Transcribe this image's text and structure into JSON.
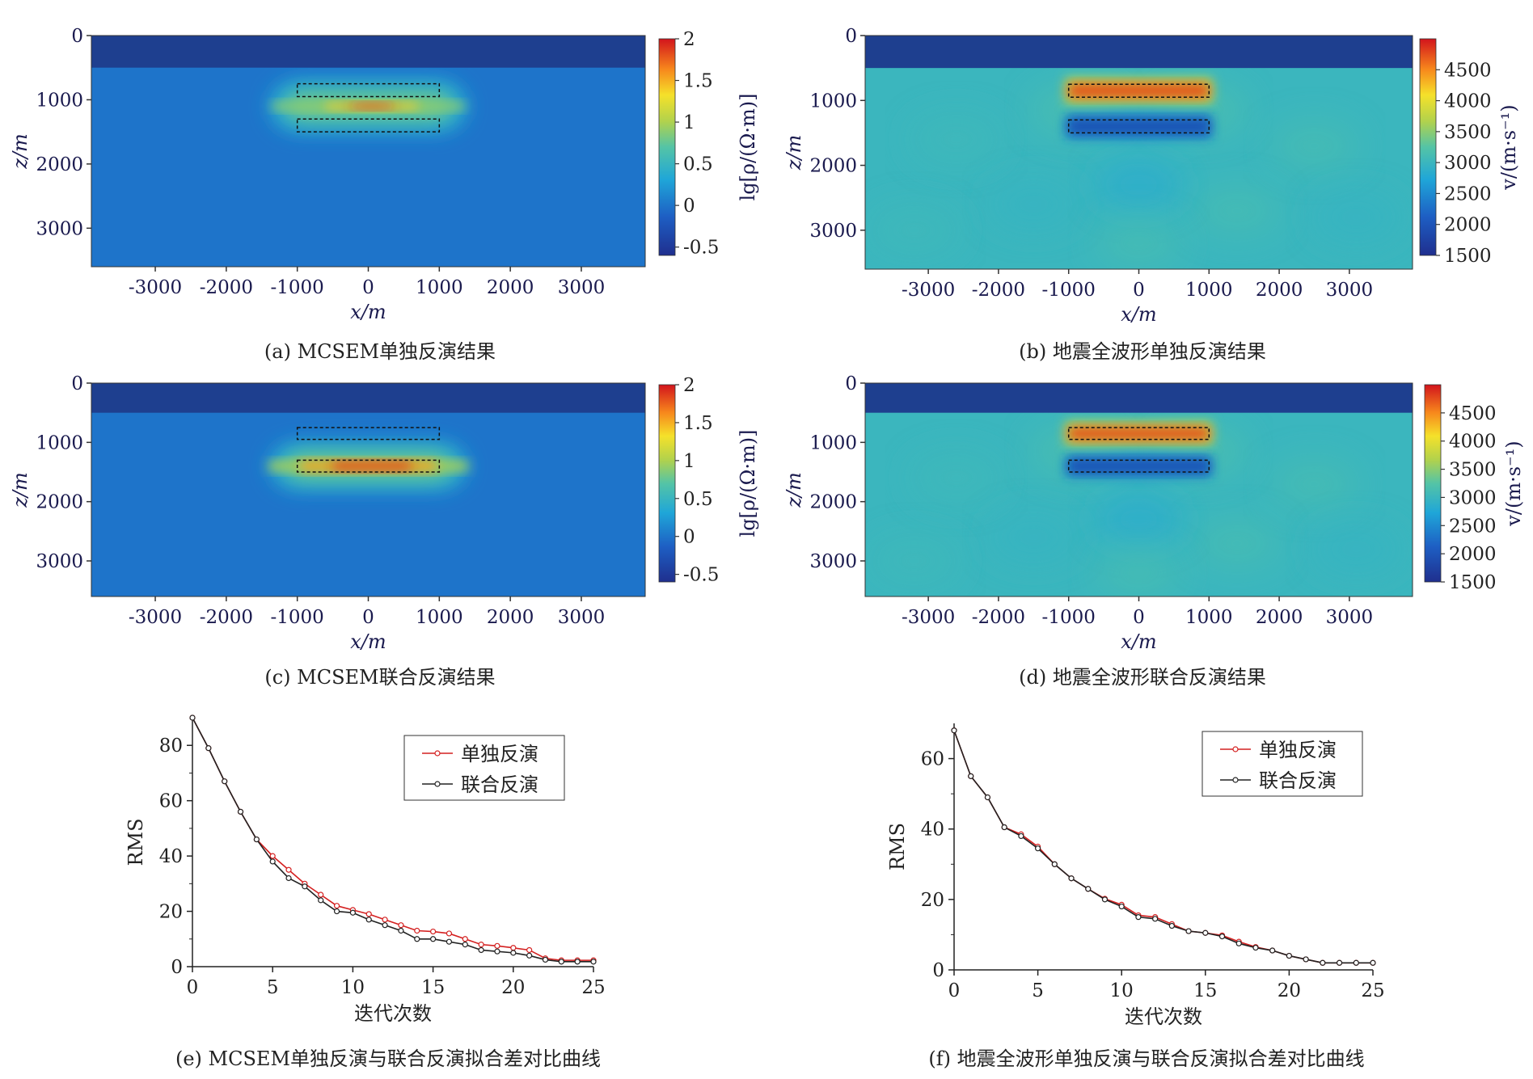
{
  "chart_data": [
    {
      "id": "a",
      "type": "heatmap",
      "caption": "(a) MCSEM单独反演结果",
      "xlabel": "x/m",
      "ylabel": "z/m",
      "x_ticks": [
        -3000,
        -2000,
        -1000,
        0,
        1000,
        2000,
        3000
      ],
      "y_ticks": [
        0,
        1000,
        2000,
        3000
      ],
      "xlim": [
        -3900,
        3900
      ],
      "zlim": [
        0,
        3600
      ],
      "water_depth": 500,
      "background_value": 0.0,
      "colorbar": {
        "label": "lg[ρ/(Ω·m)]",
        "ticks": [
          2,
          1.5,
          1,
          0.5,
          0,
          -0.5
        ],
        "range": [
          -0.6,
          2.0
        ]
      },
      "targets": [
        {
          "x": [
            -1000,
            1000
          ],
          "z": [
            750,
            950
          ]
        },
        {
          "x": [
            -1000,
            1000
          ],
          "z": [
            1300,
            1500
          ]
        }
      ],
      "anomaly": {
        "type": "resistive_smeared",
        "center_z": 1100,
        "peak": 1.9
      }
    },
    {
      "id": "b",
      "type": "heatmap",
      "caption": "(b) 地震全波形单独反演结果",
      "xlabel": "x/m",
      "ylabel": "z/m",
      "x_ticks": [
        -3000,
        -2000,
        -1000,
        0,
        1000,
        2000,
        3000
      ],
      "y_ticks": [
        0,
        1000,
        2000,
        3000
      ],
      "xlim": [
        -3900,
        3900
      ],
      "zlim": [
        0,
        3600
      ],
      "water_depth": 500,
      "background_value": 3000,
      "colorbar": {
        "label": "v/(m·s⁻¹)",
        "ticks": [
          4500,
          4000,
          3500,
          3000,
          2500,
          2000,
          1500
        ],
        "range": [
          1500,
          5000
        ]
      },
      "targets": [
        {
          "x": [
            -1000,
            1000
          ],
          "z": [
            750,
            950
          ],
          "value": 4800
        },
        {
          "x": [
            -1000,
            1000
          ],
          "z": [
            1300,
            1500
          ],
          "value": 1900
        }
      ]
    },
    {
      "id": "c",
      "type": "heatmap",
      "caption": "(c) MCSEM联合反演结果",
      "xlabel": "x/m",
      "ylabel": "z/m",
      "x_ticks": [
        -3000,
        -2000,
        -1000,
        0,
        1000,
        2000,
        3000
      ],
      "y_ticks": [
        0,
        1000,
        2000,
        3000
      ],
      "xlim": [
        -3900,
        3900
      ],
      "zlim": [
        0,
        3600
      ],
      "water_depth": 500,
      "background_value": 0.0,
      "colorbar": {
        "label": "lg[ρ/(Ω·m)]",
        "ticks": [
          2,
          1.5,
          1,
          0.5,
          0,
          -0.5
        ],
        "range": [
          -0.6,
          2.0
        ]
      },
      "targets": [
        {
          "x": [
            -1000,
            1000
          ],
          "z": [
            750,
            950
          ]
        },
        {
          "x": [
            -1000,
            1000
          ],
          "z": [
            1300,
            1500
          ]
        }
      ],
      "anomaly": {
        "type": "resistive_focused",
        "center_z": 1400,
        "peak": 1.9
      }
    },
    {
      "id": "d",
      "type": "heatmap",
      "caption": "(d) 地震全波形联合反演结果",
      "xlabel": "x/m",
      "ylabel": "z/m",
      "x_ticks": [
        -3000,
        -2000,
        -1000,
        0,
        1000,
        2000,
        3000
      ],
      "y_ticks": [
        0,
        1000,
        2000,
        3000
      ],
      "xlim": [
        -3900,
        3900
      ],
      "zlim": [
        0,
        3600
      ],
      "water_depth": 500,
      "background_value": 3000,
      "colorbar": {
        "label": "v/(m·s⁻¹)",
        "ticks": [
          4500,
          4000,
          3500,
          3000,
          2500,
          2000,
          1500
        ],
        "range": [
          1500,
          5000
        ]
      },
      "targets": [
        {
          "x": [
            -1000,
            1000
          ],
          "z": [
            750,
            950
          ],
          "value": 4800
        },
        {
          "x": [
            -1000,
            1000
          ],
          "z": [
            1300,
            1500
          ],
          "value": 1900
        }
      ]
    },
    {
      "id": "e",
      "type": "line",
      "caption": "(e) MCSEM单独反演与联合反演拟合差对比曲线",
      "xlabel": "迭代次数",
      "ylabel": "RMS",
      "x_ticks": [
        0,
        5,
        10,
        15,
        20,
        25
      ],
      "y_ticks": [
        0,
        20,
        40,
        60,
        80
      ],
      "xlim": [
        0,
        25
      ],
      "ylim": [
        0,
        90
      ],
      "legend_position": "top-right",
      "x": [
        0,
        1,
        2,
        3,
        4,
        5,
        6,
        7,
        8,
        9,
        10,
        11,
        12,
        13,
        14,
        15,
        16,
        17,
        18,
        19,
        20,
        21,
        22,
        23,
        24,
        25
      ],
      "series": [
        {
          "name": "单独反演",
          "color": "#d42020",
          "values": [
            90,
            79,
            67,
            56,
            46,
            40,
            35,
            30,
            26,
            22,
            20.5,
            19,
            17,
            15,
            13,
            12.7,
            12,
            10,
            8,
            7.5,
            6.8,
            6,
            3,
            2.3,
            2.3,
            2.3
          ]
        },
        {
          "name": "联合反演",
          "color": "#222222",
          "values": [
            90,
            79,
            67,
            56,
            46,
            38,
            32,
            29,
            24,
            20,
            19.5,
            17,
            15,
            13,
            10,
            10,
            9,
            8,
            6,
            5.5,
            5,
            4,
            2.5,
            1.8,
            1.8,
            1.8
          ]
        }
      ]
    },
    {
      "id": "f",
      "type": "line",
      "caption": "(f) 地震全波形单独反演与联合反演拟合差对比曲线",
      "xlabel": "迭代次数",
      "ylabel": "RMS",
      "x_ticks": [
        0,
        5,
        10,
        15,
        20,
        25
      ],
      "y_ticks": [
        0,
        20,
        40,
        60
      ],
      "xlim": [
        0,
        25
      ],
      "ylim": [
        0,
        70
      ],
      "legend_position": "top-right",
      "x": [
        0,
        1,
        2,
        3,
        4,
        5,
        6,
        7,
        8,
        9,
        10,
        11,
        12,
        13,
        14,
        15,
        16,
        17,
        18,
        19,
        20,
        21,
        22,
        23,
        24,
        25
      ],
      "series": [
        {
          "name": "单独反演",
          "color": "#d42020",
          "values": [
            68,
            55,
            49,
            40.5,
            38.5,
            35,
            30,
            26,
            23,
            20.2,
            18.5,
            15.5,
            15,
            13,
            11,
            10.5,
            9.8,
            8,
            6.5,
            5.5,
            4,
            3,
            2,
            2,
            2,
            2
          ]
        },
        {
          "name": "联合反演",
          "color": "#222222",
          "values": [
            68,
            55,
            49,
            40.5,
            38,
            34.5,
            30,
            26,
            23,
            20,
            18,
            15,
            14.5,
            12.5,
            11,
            10.5,
            9.5,
            7.5,
            6.3,
            5.5,
            4,
            3,
            2,
            2,
            2,
            2
          ]
        }
      ]
    }
  ]
}
